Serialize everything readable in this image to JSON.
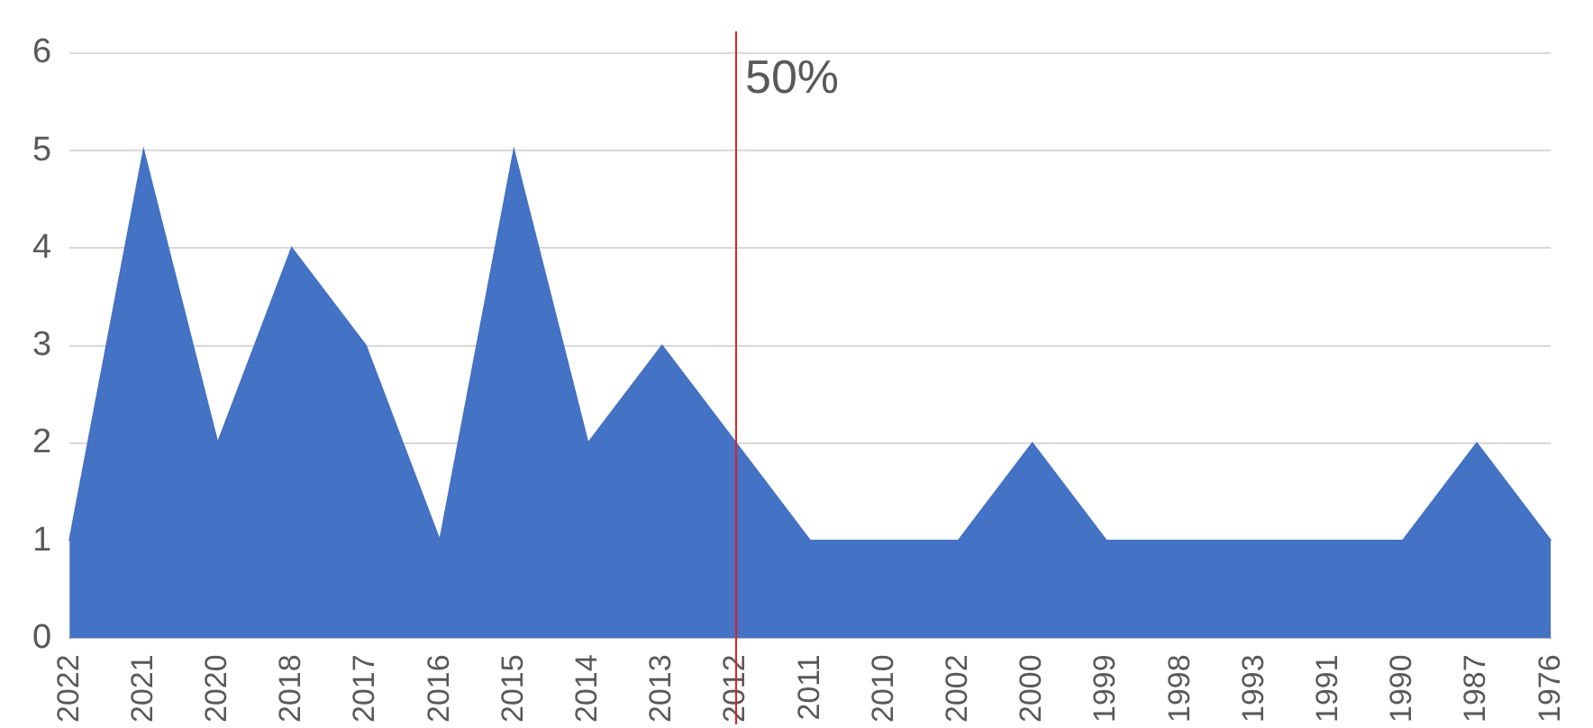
{
  "chart_data": {
    "type": "area",
    "categories": [
      "2022",
      "2021",
      "2020",
      "2018",
      "2017",
      "2016",
      "2015",
      "2014",
      "2013",
      "2012",
      "2011",
      "2010",
      "2002",
      "2000",
      "1999",
      "1998",
      "1993",
      "1991",
      "1990",
      "1987",
      "1976"
    ],
    "series": [
      {
        "color": "#4472c4",
        "values": [
          1,
          5,
          2,
          4,
          3,
          1,
          5,
          2,
          3,
          2,
          1,
          1,
          1,
          2,
          1,
          1,
          1,
          1,
          1,
          2,
          1
        ]
      }
    ],
    "ylim": [
      0,
      6
    ],
    "yticks": [
      0,
      1,
      2,
      3,
      4,
      5,
      6
    ],
    "grid": "y",
    "legend": false,
    "ref_lines": [
      {
        "axis": "x",
        "value": "2012",
        "label": "50%",
        "color": "#e02020"
      }
    ]
  }
}
